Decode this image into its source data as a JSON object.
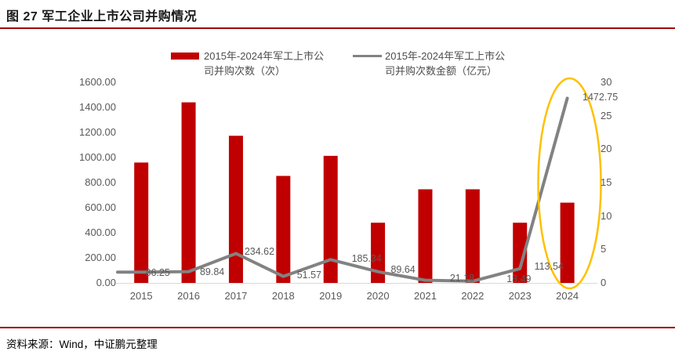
{
  "figure": {
    "title": "图 27  军工企业上市公司并购情况",
    "source": "资料来源：Wind，中证鹏元整理"
  },
  "colors": {
    "bar": "#C00000",
    "line": "#828282",
    "rule": "#A00000",
    "highlight": "#FFC000",
    "axis_text": "#595959",
    "baseline": "#D9D9D9",
    "title_text": "#1A1A1A"
  },
  "chart_data": {
    "type": "bar",
    "subtype": "bar+line combo, dual axis",
    "categories": [
      "2015",
      "2016",
      "2017",
      "2018",
      "2019",
      "2020",
      "2021",
      "2022",
      "2023",
      "2024"
    ],
    "series": [
      {
        "name": "2015年-2024年军工上市公司并购次数（次）",
        "type": "bar",
        "axis": "right",
        "values": [
          18,
          27,
          22,
          16,
          19,
          9,
          14,
          14,
          9,
          12
        ]
      },
      {
        "name": "2015年-2024年军工上市公司并购次数金额（亿元）",
        "type": "line",
        "axis": "left",
        "values": [
          86.25,
          89.84,
          234.62,
          51.57,
          185.34,
          89.64,
          21.18,
          13.49,
          113.54,
          1472.75
        ]
      }
    ],
    "point_labels": [
      "86.25",
      "89.84",
      "234.62",
      "51.57",
      "185.34",
      "89.64",
      "21.18",
      "13.49",
      "113.54",
      "1472.75"
    ],
    "left_axis": {
      "min": 0,
      "max": 1600,
      "step": 200,
      "ticks": [
        "0.00",
        "200.00",
        "400.00",
        "600.00",
        "800.00",
        "1000.00",
        "1200.00",
        "1400.00",
        "1600.00"
      ]
    },
    "right_axis": {
      "min": 0,
      "max": 30,
      "step": 5,
      "ticks": [
        "0",
        "5",
        "10",
        "15",
        "20",
        "25",
        "30"
      ]
    },
    "legend": [
      {
        "swatch": "bar",
        "lines": [
          "2015年-2024年军工上市公",
          "司并购次数（次）"
        ]
      },
      {
        "swatch": "line",
        "lines": [
          "2015年-2024年军工上市公",
          "司并购次数金额（亿元）"
        ]
      }
    ],
    "annotation": {
      "type": "ellipse",
      "target": "2024",
      "note": "highlight of 2024 values"
    },
    "grid": false,
    "legend_position": "top"
  }
}
